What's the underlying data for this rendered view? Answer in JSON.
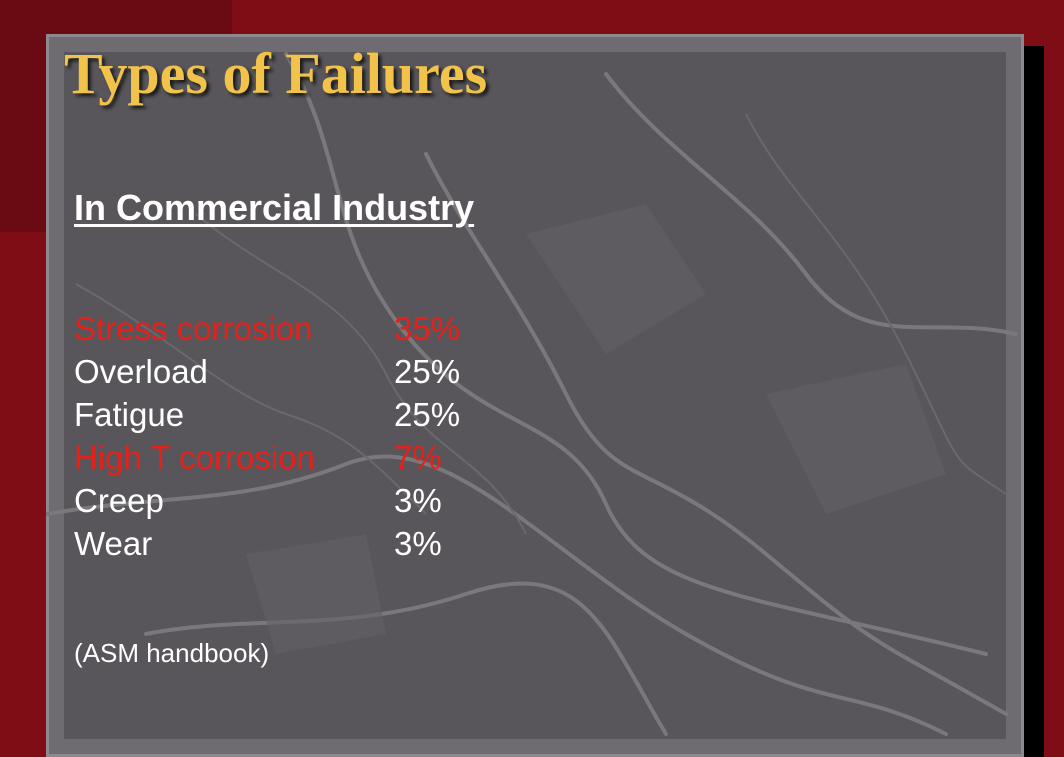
{
  "slide": {
    "title": "Types of Failures",
    "subtitle": "In Commercial Industry",
    "failures": [
      {
        "name": "Stress corrosion",
        "percent": "35%",
        "highlight": true
      },
      {
        "name": "Overload",
        "percent": "25%",
        "highlight": false
      },
      {
        "name": "Fatigue",
        "percent": "25%",
        "highlight": false
      },
      {
        "name": "High T corrosion",
        "percent": "7%",
        "highlight": true
      },
      {
        "name": "Creep",
        "percent": "3%",
        "highlight": false
      },
      {
        "name": "Wear",
        "percent": "3%",
        "highlight": false
      }
    ],
    "source": "(ASM handbook)"
  },
  "colors": {
    "background": "#7e0d16",
    "slate": "#58565a",
    "title": "#f2c34a",
    "highlight": "#e8201a",
    "text": "#ffffff"
  }
}
